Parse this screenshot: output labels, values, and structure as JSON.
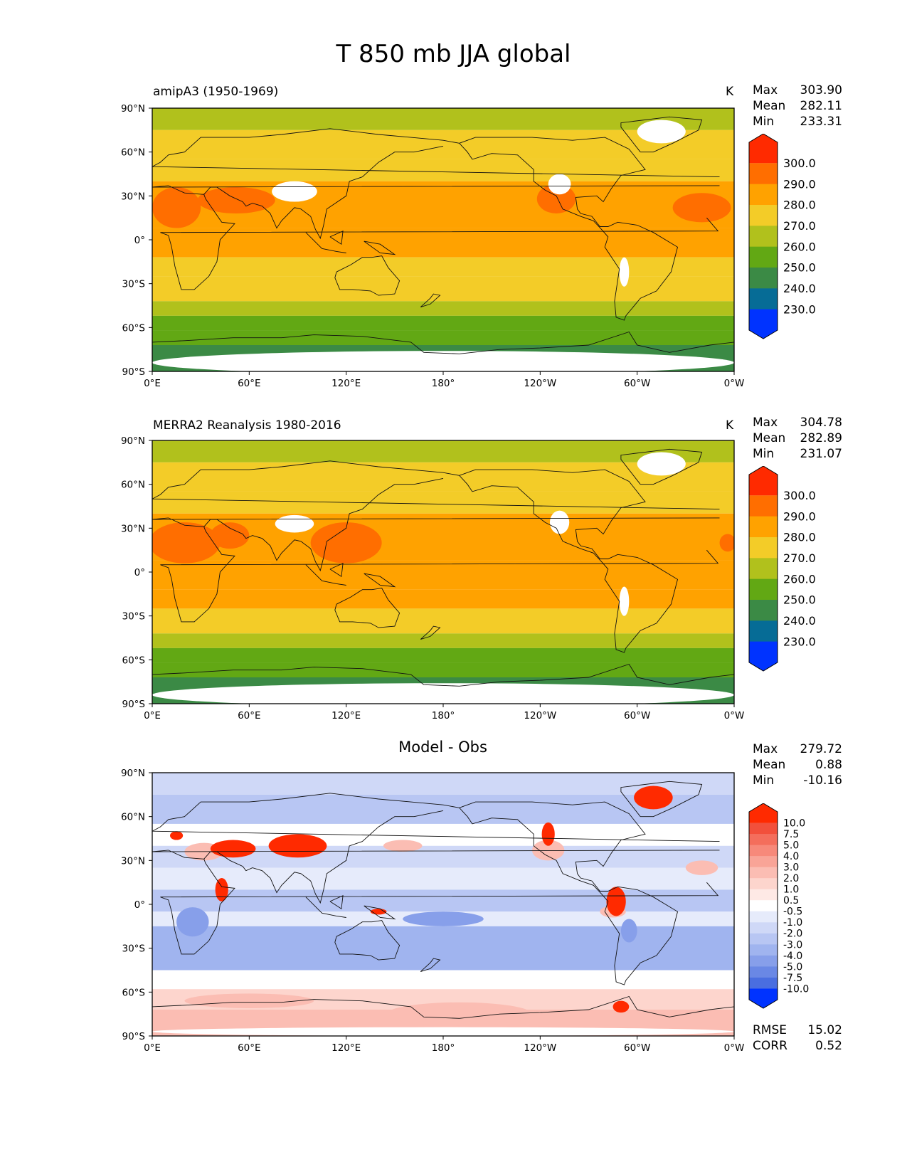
{
  "figure_title": "T 850 mb JJA global",
  "chart_data": [
    {
      "type": "heatmap",
      "id": "test",
      "title": "amipA3 (1950-1969)",
      "units": "K",
      "stats": [
        {
          "label": "Max",
          "value": "303.90"
        },
        {
          "label": "Mean",
          "value": "282.11"
        },
        {
          "label": "Min",
          "value": "233.31"
        }
      ],
      "xticks": [
        "0°E",
        "60°E",
        "120°E",
        "180°",
        "120°W",
        "60°W",
        "0°W"
      ],
      "yticks": [
        "90°N",
        "60°N",
        "30°N",
        "0°",
        "30°S",
        "60°S",
        "90°S"
      ],
      "xlim": [
        0,
        360
      ],
      "ylim": [
        -90,
        90
      ],
      "colorbar": {
        "levels": [
          "300.0",
          "290.0",
          "280.0",
          "270.0",
          "260.0",
          "250.0",
          "240.0",
          "230.0"
        ],
        "colors": [
          "#ff2a00",
          "#ff6e00",
          "#ffa200",
          "#f3cc28",
          "#b1c11c",
          "#62a814",
          "#3b8a45",
          "#066c96",
          "#0033ff"
        ]
      },
      "bands": [
        {
          "lat": [
            75,
            90
          ],
          "value": 262
        },
        {
          "lat": [
            55,
            75
          ],
          "value": 272
        },
        {
          "lat": [
            40,
            55
          ],
          "value": 278
        },
        {
          "lat": [
            8,
            40
          ],
          "value": 284
        },
        {
          "lat": [
            -12,
            8
          ],
          "value": 283
        },
        {
          "lat": [
            -25,
            -12
          ],
          "value": 279
        },
        {
          "lat": [
            -42,
            -25
          ],
          "value": 273
        },
        {
          "lat": [
            -52,
            -42
          ],
          "value": 266
        },
        {
          "lat": [
            -62,
            -52
          ],
          "value": 259
        },
        {
          "lat": [
            -72,
            -62
          ],
          "value": 252
        },
        {
          "lat": [
            -90,
            -72
          ],
          "value": 245
        }
      ],
      "features": [
        {
          "lon": 52,
          "lat": 27,
          "rx": 24,
          "ry": 9,
          "value": 298
        },
        {
          "lon": 15,
          "lat": 22,
          "rx": 15,
          "ry": 14,
          "value": 291
        },
        {
          "lon": 340,
          "lat": 22,
          "rx": 18,
          "ry": 10,
          "value": 291
        },
        {
          "lon": 250,
          "lat": 28,
          "rx": 12,
          "ry": 10,
          "value": 291
        }
      ],
      "blank": [
        {
          "lon": 88,
          "lat": 33,
          "rx": 14,
          "ry": 7
        },
        {
          "lon": 315,
          "lat": 74,
          "rx": 15,
          "ry": 8
        },
        {
          "lon": 252,
          "lat": 38,
          "rx": 7,
          "ry": 7
        },
        {
          "lon": 292,
          "lat": -22,
          "rx": 3,
          "ry": 10
        },
        {
          "lon": 180,
          "lat": -84,
          "rx": 180,
          "ry": 8
        }
      ]
    },
    {
      "type": "heatmap",
      "id": "ref",
      "title": "MERRA2 Reanalysis 1980-2016",
      "units": "K",
      "stats": [
        {
          "label": "Max",
          "value": "304.78"
        },
        {
          "label": "Mean",
          "value": "282.89"
        },
        {
          "label": "Min",
          "value": "231.07"
        }
      ],
      "xticks": [
        "0°E",
        "60°E",
        "120°E",
        "180°",
        "120°W",
        "60°W",
        "0°W"
      ],
      "yticks": [
        "90°N",
        "60°N",
        "30°N",
        "0°",
        "30°S",
        "60°S",
        "90°S"
      ],
      "xlim": [
        0,
        360
      ],
      "ylim": [
        -90,
        90
      ],
      "colorbar": {
        "levels": [
          "300.0",
          "290.0",
          "280.0",
          "270.0",
          "260.0",
          "250.0",
          "240.0",
          "230.0"
        ],
        "colors": [
          "#ff2a00",
          "#ff6e00",
          "#ffa200",
          "#f3cc28",
          "#b1c11c",
          "#62a814",
          "#3b8a45",
          "#066c96",
          "#0033ff"
        ]
      },
      "bands": [
        {
          "lat": [
            75,
            90
          ],
          "value": 262
        },
        {
          "lat": [
            55,
            75
          ],
          "value": 272
        },
        {
          "lat": [
            40,
            55
          ],
          "value": 279
        },
        {
          "lat": [
            8,
            40
          ],
          "value": 286
        },
        {
          "lat": [
            -12,
            8
          ],
          "value": 284
        },
        {
          "lat": [
            -25,
            -12
          ],
          "value": 280
        },
        {
          "lat": [
            -42,
            -25
          ],
          "value": 273
        },
        {
          "lat": [
            -52,
            -42
          ],
          "value": 266
        },
        {
          "lat": [
            -62,
            -52
          ],
          "value": 259
        },
        {
          "lat": [
            -72,
            -62
          ],
          "value": 253
        },
        {
          "lat": [
            -90,
            -72
          ],
          "value": 245
        }
      ],
      "features": [
        {
          "lon": 48,
          "lat": 25,
          "rx": 12,
          "ry": 9,
          "value": 299
        },
        {
          "lon": 8,
          "lat": 22,
          "rx": 6,
          "ry": 5,
          "value": 299
        },
        {
          "lon": 356,
          "lat": 20,
          "rx": 5,
          "ry": 6,
          "value": 299
        },
        {
          "lon": 20,
          "lat": 20,
          "rx": 22,
          "ry": 14,
          "value": 292
        },
        {
          "lon": 120,
          "lat": 20,
          "rx": 22,
          "ry": 14,
          "value": 291
        }
      ],
      "blank": [
        {
          "lon": 88,
          "lat": 33,
          "rx": 12,
          "ry": 6
        },
        {
          "lon": 315,
          "lat": 74,
          "rx": 15,
          "ry": 8
        },
        {
          "lon": 252,
          "lat": 34,
          "rx": 6,
          "ry": 8
        },
        {
          "lon": 292,
          "lat": -20,
          "rx": 3,
          "ry": 10
        },
        {
          "lon": 180,
          "lat": -84,
          "rx": 180,
          "ry": 8
        }
      ]
    },
    {
      "type": "heatmap",
      "id": "diff",
      "title": "Model - Obs",
      "units": "",
      "stats": [
        {
          "label": "Max",
          "value": "279.72"
        },
        {
          "label": "Mean",
          "value": "0.88"
        },
        {
          "label": "Min",
          "value": "-10.16"
        }
      ],
      "metrics": [
        {
          "label": "RMSE",
          "value": "15.02"
        },
        {
          "label": "CORR",
          "value": "0.52"
        }
      ],
      "xticks": [
        "0°E",
        "60°E",
        "120°E",
        "180°",
        "120°W",
        "60°W",
        "0°W"
      ],
      "yticks": [
        "90°N",
        "60°N",
        "30°N",
        "0°",
        "30°S",
        "60°S",
        "90°S"
      ],
      "xlim": [
        0,
        360
      ],
      "ylim": [
        -90,
        90
      ],
      "colorbar": {
        "levels": [
          "10.0",
          "7.5",
          "5.0",
          "4.0",
          "3.0",
          "2.0",
          "1.0",
          "0.5",
          "-0.5",
          "-1.0",
          "-2.0",
          "-3.0",
          "-4.0",
          "-5.0",
          "-7.5",
          "-10.0"
        ],
        "colors": [
          "#ff2a00",
          "#f2503b",
          "#f46e5c",
          "#f7897a",
          "#f9a497",
          "#fbbdb3",
          "#fdd5cd",
          "#fee9e5",
          "#ffffff",
          "#e6ebfb",
          "#cfd8f7",
          "#b8c6f3",
          "#a0b4ef",
          "#879fea",
          "#6a88e5",
          "#4a6ee0",
          "#0033ff"
        ]
      },
      "bands": [
        {
          "lat": [
            75,
            90
          ],
          "value": -1.5
        },
        {
          "lat": [
            55,
            75
          ],
          "value": -2.2
        },
        {
          "lat": [
            40,
            55
          ],
          "value": 0
        },
        {
          "lat": [
            25,
            40
          ],
          "value": -1.5
        },
        {
          "lat": [
            10,
            25
          ],
          "value": -0.7
        },
        {
          "lat": [
            -5,
            10
          ],
          "value": -2.2
        },
        {
          "lat": [
            -15,
            -5
          ],
          "value": -0.7
        },
        {
          "lat": [
            -45,
            -15
          ],
          "value": -3.2
        },
        {
          "lat": [
            -58,
            -45
          ],
          "value": -0.3
        },
        {
          "lat": [
            -72,
            -58
          ],
          "value": 1.5
        },
        {
          "lat": [
            -90,
            -72
          ],
          "value": 2.5
        }
      ],
      "features": [
        {
          "lon": 32,
          "lat": 36,
          "rx": 12,
          "ry": 6,
          "value": 2.5
        },
        {
          "lon": 155,
          "lat": 40,
          "rx": 12,
          "ry": 4,
          "value": 2.5
        },
        {
          "lon": 245,
          "lat": 37,
          "rx": 10,
          "ry": 7,
          "value": 2.5
        },
        {
          "lon": 340,
          "lat": 25,
          "rx": 10,
          "ry": 5,
          "value": 2.5
        },
        {
          "lon": 285,
          "lat": -5,
          "rx": 8,
          "ry": 4,
          "value": 2.5
        },
        {
          "lon": 60,
          "lat": -66,
          "rx": 40,
          "ry": 5,
          "value": 2.5
        },
        {
          "lon": 190,
          "lat": -75,
          "rx": 45,
          "ry": 8,
          "value": 2.5
        },
        {
          "lon": 287,
          "lat": 2,
          "rx": 6,
          "ry": 10,
          "value": 12
        },
        {
          "lon": 310,
          "lat": 73,
          "rx": 12,
          "ry": 8,
          "value": 12
        },
        {
          "lon": 50,
          "lat": 38,
          "rx": 14,
          "ry": 6,
          "value": 12
        },
        {
          "lon": 90,
          "lat": 40,
          "rx": 18,
          "ry": 8,
          "value": 12
        },
        {
          "lon": 43,
          "lat": 10,
          "rx": 4,
          "ry": 8,
          "value": 12
        },
        {
          "lon": 245,
          "lat": 48,
          "rx": 4,
          "ry": 8,
          "value": 12
        },
        {
          "lon": 290,
          "lat": -70,
          "rx": 5,
          "ry": 4,
          "value": 12
        },
        {
          "lon": 140,
          "lat": -5,
          "rx": 5,
          "ry": 2,
          "value": 12
        },
        {
          "lon": 15,
          "lat": 47,
          "rx": 4,
          "ry": 3,
          "value": 12
        },
        {
          "lon": 268,
          "lat": 60,
          "rx": 10,
          "ry": 4,
          "value": -2.5
        },
        {
          "lon": 295,
          "lat": -18,
          "rx": 5,
          "ry": 8,
          "value": -4.5
        },
        {
          "lon": 25,
          "lat": -12,
          "rx": 10,
          "ry": 10,
          "value": -4.5
        },
        {
          "lon": 180,
          "lat": -10,
          "rx": 25,
          "ry": 5,
          "value": -4.5
        }
      ],
      "blank": [
        {
          "lon": 180,
          "lat": -87,
          "rx": 180,
          "ry": 3
        }
      ]
    }
  ]
}
